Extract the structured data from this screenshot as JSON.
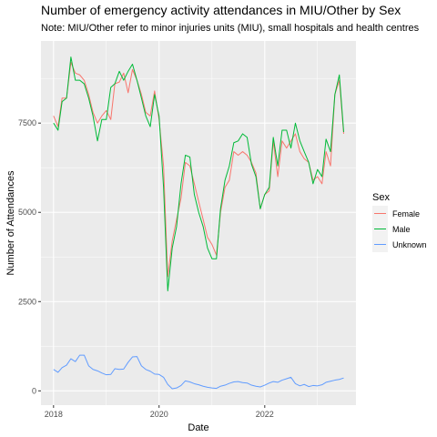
{
  "chart_data": {
    "type": "line",
    "title": "Number of emergency activity attendances in MIU/Other by Sex",
    "subtitle": "Note: MIU/Other refer to minor injuries units (MIU), small hospitals and health centres",
    "xlabel": "Date",
    "ylabel": "Number of Attendances",
    "x_ticks": [
      "2018",
      "2020",
      "2022"
    ],
    "y_ticks": [
      "0",
      "2500",
      "5000",
      "7500"
    ],
    "xlim": [
      "2017-10-06",
      "2023-09-24"
    ],
    "ylim": [
      -400,
      9800
    ],
    "grid": true,
    "legend": {
      "title": "Sex",
      "position": "right"
    },
    "x": [
      "2018-01",
      "2018-02",
      "2018-03",
      "2018-04",
      "2018-05",
      "2018-06",
      "2018-07",
      "2018-08",
      "2018-09",
      "2018-10",
      "2018-11",
      "2018-12",
      "2019-01",
      "2019-02",
      "2019-03",
      "2019-04",
      "2019-05",
      "2019-06",
      "2019-07",
      "2019-08",
      "2019-09",
      "2019-10",
      "2019-11",
      "2019-12",
      "2020-01",
      "2020-02",
      "2020-03",
      "2020-04",
      "2020-05",
      "2020-06",
      "2020-07",
      "2020-08",
      "2020-09",
      "2020-10",
      "2020-11",
      "2020-12",
      "2021-01",
      "2021-02",
      "2021-03",
      "2021-04",
      "2021-05",
      "2021-06",
      "2021-07",
      "2021-08",
      "2021-09",
      "2021-10",
      "2021-11",
      "2021-12",
      "2022-01",
      "2022-02",
      "2022-03",
      "2022-04",
      "2022-05",
      "2022-06",
      "2022-07",
      "2022-08",
      "2022-09",
      "2022-10",
      "2022-11",
      "2022-12",
      "2023-01",
      "2023-02",
      "2023-03",
      "2023-04",
      "2023-05",
      "2023-06",
      "2023-07"
    ],
    "series": [
      {
        "name": "Female",
        "color": "#F8766D",
        "values": [
          7700,
          7400,
          8200,
          8200,
          9200,
          8900,
          8850,
          8700,
          8300,
          7800,
          7500,
          7700,
          7850,
          7600,
          8600,
          8650,
          8900,
          8350,
          9000,
          8700,
          8300,
          7800,
          7700,
          8400,
          7600,
          6300,
          3200,
          4200,
          4800,
          5400,
          6400,
          6300,
          5800,
          5300,
          4800,
          4300,
          4100,
          3800,
          5000,
          5700,
          5900,
          6700,
          6600,
          6700,
          6600,
          6400,
          6100,
          5100,
          5500,
          5600,
          7000,
          6000,
          7000,
          6800,
          7000,
          7200,
          6700,
          6500,
          6400,
          5900,
          6000,
          5800,
          6700,
          6300,
          8300,
          8700,
          7200
        ]
      },
      {
        "name": "Male",
        "color": "#00BA38",
        "values": [
          7500,
          7300,
          8100,
          8200,
          9350,
          8700,
          8700,
          8600,
          8200,
          7700,
          7000,
          7600,
          7600,
          8500,
          8600,
          8950,
          8700,
          8950,
          9150,
          8700,
          8200,
          7700,
          7400,
          8300,
          7700,
          5700,
          2800,
          4000,
          4600,
          5800,
          6600,
          6550,
          5500,
          5000,
          4600,
          4000,
          3700,
          3700,
          5100,
          5900,
          6300,
          6950,
          7000,
          7200,
          7100,
          6350,
          6000,
          5100,
          5500,
          5700,
          7100,
          6300,
          7300,
          7300,
          6800,
          7500,
          7000,
          6700,
          6400,
          5800,
          6200,
          6000,
          7050,
          6700,
          8300,
          8850,
          7250
        ]
      },
      {
        "name": "Unknown",
        "color": "#619CFF",
        "values": [
          600,
          520,
          650,
          720,
          900,
          820,
          1000,
          1000,
          700,
          600,
          560,
          500,
          450,
          460,
          620,
          600,
          610,
          800,
          950,
          960,
          700,
          600,
          550,
          470,
          460,
          380,
          180,
          60,
          80,
          150,
          280,
          250,
          200,
          170,
          130,
          100,
          80,
          70,
          130,
          160,
          210,
          250,
          260,
          230,
          220,
          160,
          130,
          110,
          160,
          220,
          260,
          240,
          300,
          340,
          380,
          200,
          140,
          180,
          120,
          150,
          140,
          170,
          240,
          270,
          300,
          320,
          360
        ]
      }
    ]
  }
}
